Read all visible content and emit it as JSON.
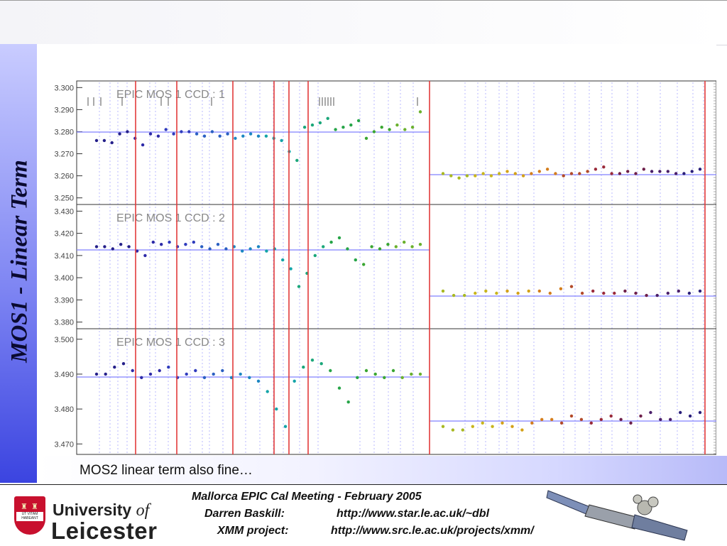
{
  "slide": {
    "side_title": "MOS1 - Linear Term",
    "caption": "MOS2 linear term also fine…"
  },
  "footer": {
    "logo_line1_a": "University",
    "logo_line1_b": "of",
    "logo_line2": "Leicester",
    "crest_motto": "UT VITAM HABEANT",
    "meeting": "Mallorca EPIC Cal Meeting - February 2005",
    "author": "Darren Baskill:",
    "author_url": "http://www.star.le.ac.uk/~dbl",
    "project": "XMM project:",
    "project_url": "http://www.src.le.ac.uk/projects/xmm/"
  },
  "chart_data": [
    {
      "type": "scatter",
      "title": "EPIC MOS 1    CCD : 1",
      "ylim": [
        3.247,
        3.303
      ],
      "yticks": [
        "3.250",
        "3.260",
        "3.270",
        "3.280",
        "3.290",
        "3.300"
      ],
      "series": [
        {
          "values": [
            3.276,
            3.276,
            3.275,
            3.279,
            3.28,
            3.277,
            3.274,
            3.279,
            3.278,
            3.281,
            3.279,
            3.28,
            3.28,
            3.279,
            3.278,
            3.28,
            3.278,
            3.279,
            3.277,
            3.278,
            3.279,
            3.278,
            3.278,
            3.277,
            3.276,
            3.271,
            3.267,
            3.282,
            3.283,
            3.284,
            3.286,
            3.281,
            3.282,
            3.283,
            3.285,
            3.277,
            3.28,
            3.282,
            3.281,
            3.283,
            3.281,
            3.282,
            3.289
          ]
        },
        {
          "values": [
            3.261,
            3.26,
            3.259,
            3.26,
            3.26,
            3.261,
            3.26,
            3.261,
            3.262,
            3.261,
            3.26,
            3.261,
            3.262,
            3.263,
            3.261,
            3.26,
            3.261,
            3.261,
            3.262,
            3.263,
            3.264,
            3.261,
            3.261,
            3.262,
            3.261,
            3.263,
            3.262,
            3.262,
            3.262,
            3.261,
            3.261,
            3.262,
            3.263
          ]
        }
      ]
    },
    {
      "type": "scatter",
      "title": "EPIC MOS 1    CCD : 2",
      "ylim": [
        3.377,
        3.433
      ],
      "yticks": [
        "3.380",
        "3.390",
        "3.400",
        "3.410",
        "3.420",
        "3.430"
      ],
      "series": [
        {
          "values": [
            3.414,
            3.414,
            3.413,
            3.415,
            3.414,
            3.412,
            3.41,
            3.416,
            3.415,
            3.416,
            3.414,
            3.415,
            3.416,
            3.414,
            3.413,
            3.415,
            3.413,
            3.414,
            3.412,
            3.413,
            3.414,
            3.412,
            3.413,
            3.408,
            3.404,
            3.396,
            3.402,
            3.41,
            3.414,
            3.416,
            3.418,
            3.413,
            3.408,
            3.406,
            3.414,
            3.413,
            3.415,
            3.414,
            3.416,
            3.414,
            3.415
          ]
        },
        {
          "values": [
            3.394,
            3.392,
            3.392,
            3.393,
            3.394,
            3.393,
            3.394,
            3.393,
            3.394,
            3.394,
            3.393,
            3.395,
            3.396,
            3.393,
            3.394,
            3.393,
            3.393,
            3.394,
            3.393,
            3.392,
            3.392,
            3.393,
            3.394,
            3.393,
            3.394
          ]
        }
      ]
    },
    {
      "type": "scatter",
      "title": "EPIC MOS 1    CCD : 3",
      "ylim": [
        3.467,
        3.503
      ],
      "yticks": [
        "3.470",
        "3.480",
        "3.490",
        "3.500"
      ],
      "series": [
        {
          "values": [
            3.49,
            3.49,
            3.492,
            3.493,
            3.491,
            3.489,
            3.49,
            3.491,
            3.492,
            3.489,
            3.49,
            3.491,
            3.489,
            3.49,
            3.491,
            3.489,
            3.49,
            3.489,
            3.488,
            3.485,
            3.48,
            3.475,
            3.488,
            3.492,
            3.494,
            3.493,
            3.491,
            3.486,
            3.482,
            3.489,
            3.491,
            3.49,
            3.489,
            3.491,
            3.489,
            3.49,
            3.49
          ]
        },
        {
          "values": [
            3.475,
            3.474,
            3.474,
            3.475,
            3.476,
            3.475,
            3.476,
            3.475,
            3.474,
            3.476,
            3.477,
            3.477,
            3.476,
            3.478,
            3.477,
            3.476,
            3.477,
            3.478,
            3.477,
            3.476,
            3.478,
            3.479,
            3.477,
            3.477,
            3.479,
            3.478,
            3.479
          ]
        }
      ]
    }
  ],
  "colors": {
    "fit_line": "#8080ff",
    "red_marker": "#e23a3a",
    "grid_dotted": "#b8b8ff",
    "slide_gradient_end": "#3b44e0"
  }
}
